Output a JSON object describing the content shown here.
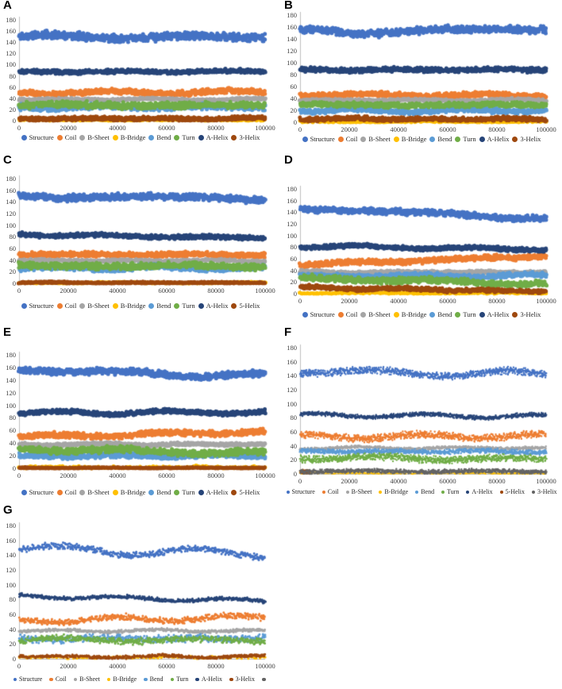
{
  "figure": {
    "description": "Seven scatter plots (A-G) of protein secondary structure element counts versus simulation time (0-100000)",
    "panel_labels": [
      "A",
      "B",
      "C",
      "D",
      "E",
      "F",
      "G"
    ]
  },
  "chart_data": [
    {
      "panel": "A",
      "type": "scatter",
      "xlim": [
        0,
        100000
      ],
      "ylim": [
        0,
        180
      ],
      "grid": false,
      "x_ticks": [
        0,
        20000,
        40000,
        60000,
        80000,
        100000
      ],
      "y_ticks": [
        0,
        20,
        40,
        60,
        80,
        100,
        120,
        140,
        160,
        180
      ],
      "legend_position": "bottom",
      "series": [
        {
          "name": "Structure",
          "color": "#4472C4",
          "mean_start": 150,
          "mean_end": 149,
          "spread": 8,
          "wobble": 2.5,
          "n": 650
        },
        {
          "name": "Coil",
          "color": "#ED7D31",
          "mean_start": 50,
          "mean_end": 51,
          "spread": 5.5,
          "wobble": 2,
          "n": 650
        },
        {
          "name": "B-Sheet",
          "color": "#A5A5A5",
          "mean_start": 38,
          "mean_end": 38,
          "spread": 2.5,
          "wobble": 1,
          "n": 600
        },
        {
          "name": "B-Bridge",
          "color": "#FFC000",
          "mean_start": 1.5,
          "mean_end": 1.5,
          "spread": 2.5,
          "wobble": 0.5,
          "n": 220
        },
        {
          "name": "Bend",
          "color": "#5B9BD5",
          "mean_start": 24,
          "mean_end": 24,
          "spread": 6,
          "wobble": 1.5,
          "n": 650
        },
        {
          "name": "Turn",
          "color": "#70AD47",
          "mean_start": 28,
          "mean_end": 27,
          "spread": 7,
          "wobble": 1.5,
          "n": 650
        },
        {
          "name": "A-Helix",
          "color": "#264478",
          "mean_start": 87,
          "mean_end": 88,
          "spread": 4,
          "wobble": 1.5,
          "n": 650
        },
        {
          "name": "3-Helix",
          "color": "#9E480E",
          "mean_start": 4,
          "mean_end": 3.5,
          "spread": 4,
          "wobble": 1,
          "n": 620
        }
      ]
    },
    {
      "panel": "B",
      "type": "scatter",
      "xlim": [
        0,
        100000
      ],
      "ylim": [
        0,
        180
      ],
      "grid": false,
      "x_ticks": [
        0,
        20000,
        40000,
        60000,
        80000,
        100000
      ],
      "y_ticks": [
        0,
        20,
        40,
        60,
        80,
        100,
        120,
        140,
        160,
        180
      ],
      "legend_position": "bottom",
      "series": [
        {
          "name": "Structure",
          "color": "#4472C4",
          "mean_start": 151,
          "mean_end": 157,
          "spread": 7,
          "wobble": 3.5,
          "n": 650
        },
        {
          "name": "Coil",
          "color": "#ED7D31",
          "mean_start": 46,
          "mean_end": 45,
          "spread": 5,
          "wobble": 2,
          "n": 650
        },
        {
          "name": "B-Sheet",
          "color": "#A5A5A5",
          "mean_start": 37,
          "mean_end": 37,
          "spread": 2.5,
          "wobble": 1,
          "n": 600
        },
        {
          "name": "B-Bridge",
          "color": "#FFC000",
          "mean_start": 1,
          "mean_end": 1,
          "spread": 2,
          "wobble": 0.5,
          "n": 200
        },
        {
          "name": "Bend",
          "color": "#5B9BD5",
          "mean_start": 20,
          "mean_end": 20,
          "spread": 5,
          "wobble": 1.5,
          "n": 650
        },
        {
          "name": "Turn",
          "color": "#70AD47",
          "mean_start": 29,
          "mean_end": 29,
          "spread": 5,
          "wobble": 1.5,
          "n": 650
        },
        {
          "name": "A-Helix",
          "color": "#264478",
          "mean_start": 88,
          "mean_end": 88,
          "spread": 4.5,
          "wobble": 1.5,
          "n": 650
        },
        {
          "name": "3-Helix",
          "color": "#9E480E",
          "mean_start": 6,
          "mean_end": 5,
          "spread": 4,
          "wobble": 1,
          "n": 620
        }
      ]
    },
    {
      "panel": "C",
      "type": "scatter",
      "xlim": [
        0,
        100000
      ],
      "ylim": [
        0,
        180
      ],
      "grid": false,
      "x_ticks": [
        0,
        20000,
        40000,
        60000,
        80000,
        100000
      ],
      "y_ticks": [
        0,
        20,
        40,
        60,
        80,
        100,
        120,
        140,
        160,
        180
      ],
      "legend_position": "bottom",
      "series": [
        {
          "name": "Structure",
          "color": "#4472C4",
          "mean_start": 150,
          "mean_end": 146,
          "spread": 7,
          "wobble": 2.5,
          "n": 650
        },
        {
          "name": "Coil",
          "color": "#ED7D31",
          "mean_start": 50,
          "mean_end": 49,
          "spread": 5,
          "wobble": 2,
          "n": 650
        },
        {
          "name": "B-Sheet",
          "color": "#A5A5A5",
          "mean_start": 39,
          "mean_end": 39,
          "spread": 2.5,
          "wobble": 1,
          "n": 600
        },
        {
          "name": "B-Bridge",
          "color": "#FFC000",
          "mean_start": 1,
          "mean_end": 1,
          "spread": 1.5,
          "wobble": 0.5,
          "n": 200
        },
        {
          "name": "Bend",
          "color": "#5B9BD5",
          "mean_start": 26,
          "mean_end": 27,
          "spread": 5.5,
          "wobble": 1.5,
          "n": 650
        },
        {
          "name": "Turn",
          "color": "#70AD47",
          "mean_start": 30,
          "mean_end": 30,
          "spread": 6.5,
          "wobble": 1.5,
          "n": 650
        },
        {
          "name": "A-Helix",
          "color": "#264478",
          "mean_start": 84,
          "mean_end": 78,
          "spread": 4,
          "wobble": 1.5,
          "n": 650
        },
        {
          "name": "5-Helix",
          "color": "#9E480E",
          "mean_start": 1.2,
          "mean_end": 1.2,
          "spread": 1.8,
          "wobble": 0.5,
          "n": 620
        }
      ]
    },
    {
      "panel": "D",
      "type": "scatter",
      "xlim": [
        0,
        100000
      ],
      "ylim": [
        0,
        180
      ],
      "grid": false,
      "x_ticks": [
        0,
        20000,
        40000,
        60000,
        80000,
        100000
      ],
      "y_ticks": [
        0,
        20,
        40,
        60,
        80,
        100,
        120,
        140,
        160,
        180
      ],
      "legend_position": "bottom",
      "series": [
        {
          "name": "Structure",
          "color": "#4472C4",
          "mean_start": 147,
          "mean_end": 130,
          "spread": 6,
          "wobble": 2.5,
          "n": 650
        },
        {
          "name": "Coil",
          "color": "#ED7D31",
          "mean_start": 50,
          "mean_end": 65,
          "spread": 5.5,
          "wobble": 2,
          "n": 650
        },
        {
          "name": "B-Sheet",
          "color": "#A5A5A5",
          "mean_start": 37,
          "mean_end": 37,
          "spread": 3,
          "wobble": 1,
          "n": 600
        },
        {
          "name": "B-Bridge",
          "color": "#FFC000",
          "mean_start": 1,
          "mean_end": 1,
          "spread": 1.8,
          "wobble": 0.5,
          "n": 200
        },
        {
          "name": "Bend",
          "color": "#5B9BD5",
          "mean_start": 30,
          "mean_end": 31,
          "spread": 5,
          "wobble": 1.5,
          "n": 650
        },
        {
          "name": "Turn",
          "color": "#70AD47",
          "mean_start": 27,
          "mean_end": 17,
          "spread": 6,
          "wobble": 1.5,
          "n": 650
        },
        {
          "name": "A-Helix",
          "color": "#264478",
          "mean_start": 82,
          "mean_end": 76,
          "spread": 4,
          "wobble": 1.5,
          "n": 650
        },
        {
          "name": "3-Helix",
          "color": "#9E480E",
          "mean_start": 11,
          "mean_end": 4,
          "spread": 4,
          "wobble": 1,
          "n": 620
        }
      ]
    },
    {
      "panel": "E",
      "type": "scatter",
      "xlim": [
        0,
        100000
      ],
      "ylim": [
        0,
        180
      ],
      "grid": false,
      "x_ticks": [
        0,
        20000,
        40000,
        60000,
        80000,
        100000
      ],
      "y_ticks": [
        0,
        20,
        40,
        60,
        80,
        100,
        120,
        140,
        160,
        180
      ],
      "legend_position": "bottom",
      "series": [
        {
          "name": "Structure",
          "color": "#4472C4",
          "mean_start": 156,
          "mean_end": 146,
          "spread": 6,
          "wobble": 2.5,
          "n": 650
        },
        {
          "name": "Coil",
          "color": "#ED7D31",
          "mean_start": 50,
          "mean_end": 58,
          "spread": 5,
          "wobble": 2,
          "n": 650
        },
        {
          "name": "B-Sheet",
          "color": "#A5A5A5",
          "mean_start": 38,
          "mean_end": 38,
          "spread": 3,
          "wobble": 1,
          "n": 600
        },
        {
          "name": "B-Bridge",
          "color": "#FFC000",
          "mean_start": 1.5,
          "mean_end": 1.5,
          "spread": 2.5,
          "wobble": 0.5,
          "n": 150
        },
        {
          "name": "Bend",
          "color": "#5B9BD5",
          "mean_start": 20,
          "mean_end": 20,
          "spread": 5,
          "wobble": 1.5,
          "n": 650
        },
        {
          "name": "Turn",
          "color": "#70AD47",
          "mean_start": 31,
          "mean_end": 24,
          "spread": 6,
          "wobble": 1.5,
          "n": 650
        },
        {
          "name": "A-Helix",
          "color": "#264478",
          "mean_start": 88,
          "mean_end": 89,
          "spread": 4,
          "wobble": 1.5,
          "n": 650
        },
        {
          "name": "5-Helix",
          "color": "#9E480E",
          "mean_start": 0.7,
          "mean_end": 0.7,
          "spread": 1,
          "wobble": 0.3,
          "n": 620
        }
      ]
    },
    {
      "panel": "F",
      "type": "scatter",
      "xlim": [
        0,
        100000
      ],
      "ylim": [
        0,
        180
      ],
      "grid": false,
      "x_ticks": [
        0,
        20000,
        40000,
        60000,
        80000,
        100000
      ],
      "y_ticks": [
        0,
        20,
        40,
        60,
        80,
        100,
        120,
        140,
        160,
        180
      ],
      "legend_position": "bottom",
      "series": [
        {
          "name": "Structure",
          "color": "#4472C4",
          "mean_start": 146,
          "mean_end": 142,
          "spread": 6,
          "wobble": 3,
          "n": 950
        },
        {
          "name": "Coil",
          "color": "#ED7D31",
          "mean_start": 53,
          "mean_end": 54,
          "spread": 6,
          "wobble": 2,
          "n": 950
        },
        {
          "name": "B-Sheet",
          "color": "#A5A5A5",
          "mean_start": 37,
          "mean_end": 37,
          "spread": 2.5,
          "wobble": 1,
          "n": 900
        },
        {
          "name": "B-Bridge",
          "color": "#FFC000",
          "mean_start": 1,
          "mean_end": 1,
          "spread": 1.5,
          "wobble": 0.5,
          "n": 250
        },
        {
          "name": "Bend",
          "color": "#5B9BD5",
          "mean_start": 32,
          "mean_end": 32,
          "spread": 4,
          "wobble": 1.5,
          "n": 950
        },
        {
          "name": "Turn",
          "color": "#70AD47",
          "mean_start": 23,
          "mean_end": 21,
          "spread": 6,
          "wobble": 1.5,
          "n": 950
        },
        {
          "name": "A-Helix",
          "color": "#264478",
          "mean_start": 84,
          "mean_end": 82,
          "spread": 3.5,
          "wobble": 1.5,
          "n": 950
        },
        {
          "name": "5-Helix",
          "color": "#9E480E",
          "mean_start": 3,
          "mean_end": 3,
          "spread": 3.5,
          "wobble": 0.5,
          "n": 80,
          "x_start": 0,
          "x_end": 0.04
        },
        {
          "name": "3-Helix",
          "color": "#636363",
          "mean_start": 4,
          "mean_end": 3.5,
          "spread": 3.5,
          "wobble": 1,
          "n": 900
        }
      ]
    },
    {
      "panel": "G",
      "type": "scatter",
      "xlim": [
        0,
        100000
      ],
      "ylim": [
        0,
        180
      ],
      "grid": false,
      "x_ticks": [
        0,
        20000,
        40000,
        60000,
        80000,
        100000
      ],
      "y_ticks": [
        0,
        20,
        40,
        60,
        80,
        100,
        120,
        140,
        160,
        180
      ],
      "legend_position": "bottom",
      "series": [
        {
          "name": "Structure",
          "color": "#4472C4",
          "mean_start": 149,
          "mean_end": 141,
          "spread": 5,
          "wobble": 3.5,
          "n": 520
        },
        {
          "name": "Coil",
          "color": "#ED7D31",
          "mean_start": 52,
          "mean_end": 56,
          "spread": 5,
          "wobble": 2,
          "n": 520
        },
        {
          "name": "B-Sheet",
          "color": "#A5A5A5",
          "mean_start": 38,
          "mean_end": 38,
          "spread": 2.5,
          "wobble": 1,
          "n": 500
        },
        {
          "name": "B-Bridge",
          "color": "#FFC000",
          "mean_start": 2,
          "mean_end": 2,
          "spread": 2.5,
          "wobble": 0.5,
          "n": 150
        },
        {
          "name": "Bend",
          "color": "#5B9BD5",
          "mean_start": 27,
          "mean_end": 28,
          "spread": 6,
          "wobble": 1.5,
          "n": 520
        },
        {
          "name": "Turn",
          "color": "#70AD47",
          "mean_start": 26,
          "mean_end": 25,
          "spread": 5,
          "wobble": 1.5,
          "n": 520
        },
        {
          "name": "A-Helix",
          "color": "#264478",
          "mean_start": 85,
          "mean_end": 78,
          "spread": 3,
          "wobble": 1.5,
          "n": 520
        },
        {
          "name": "3-Helix",
          "color": "#9E480E",
          "mean_start": 3,
          "mean_end": 3,
          "spread": 2.5,
          "wobble": 1,
          "n": 500
        },
        {
          "name": "",
          "color": "#636363",
          "mean_start": 0,
          "mean_end": 0,
          "spread": 0,
          "wobble": 0,
          "n": 0
        }
      ]
    }
  ]
}
